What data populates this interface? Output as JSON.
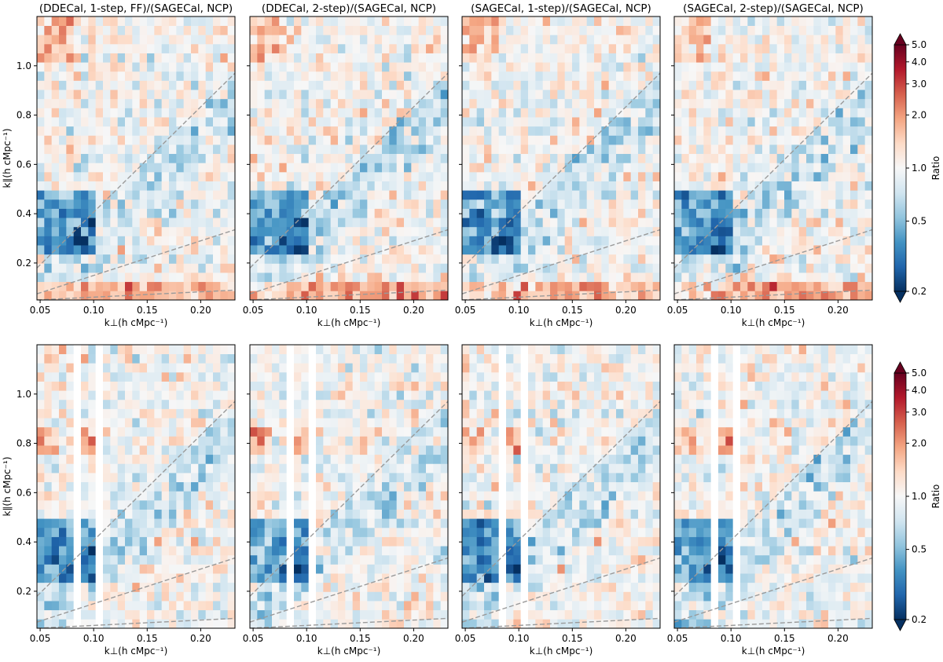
{
  "chart_data": {
    "type": "heatmap",
    "colormap": "RdBu_r (log-scaled ratio)",
    "xlabel": "k⊥(h cMpc⁻¹)",
    "ylabel": "k∥(h cMpc⁻¹)",
    "xlim": [
      0.047,
      0.232
    ],
    "ylim": [
      0.05,
      1.2
    ],
    "xticks": [
      "0.05",
      "0.10",
      "0.15",
      "0.20"
    ],
    "xtick_values": [
      0.05,
      0.1,
      0.15,
      0.2
    ],
    "yticks": [
      "0.2",
      "0.4",
      "0.6",
      "0.8",
      "1.0"
    ],
    "ytick_values": [
      0.2,
      0.4,
      0.6,
      0.8,
      1.0
    ],
    "grid_columns": 27,
    "grid_rows": 31,
    "color_range": [
      0.2,
      5.0
    ],
    "colorbar": {
      "label": "Ratio",
      "ticks": [
        "5.0",
        "4.0",
        "3.0",
        "2.0",
        "1.0",
        "0.5",
        "0.2"
      ],
      "tick_values": [
        5.0,
        4.0,
        3.0,
        2.0,
        1.0,
        0.5,
        0.2
      ]
    },
    "reference_lines": [
      {
        "name": "horizon line",
        "points": [
          [
            0.047,
            0.18
          ],
          [
            0.232,
            0.97
          ]
        ]
      },
      {
        "name": "middle wedge line",
        "points": [
          [
            0.047,
            0.075
          ],
          [
            0.232,
            0.335
          ]
        ]
      },
      {
        "name": "lower wedge line",
        "points": [
          [
            0.047,
            0.05
          ],
          [
            0.232,
            0.09
          ]
        ]
      }
    ],
    "blank_columns_bottom_row": [
      0.085,
      0.105
    ],
    "panels": [
      {
        "row": 0,
        "title": "(DDECal, 1-step, FF)/(SAGECal, NCP)"
      },
      {
        "row": 0,
        "title": "(DDECal, 2-step)/(SAGECal, NCP)"
      },
      {
        "row": 0,
        "title": "(SAGECal, 1-step)/(SAGECal, NCP)"
      },
      {
        "row": 0,
        "title": "(SAGECal, 2-step)/(SAGECal, NCP)"
      },
      {
        "row": 1,
        "title": ""
      },
      {
        "row": 1,
        "title": ""
      },
      {
        "row": 1,
        "title": ""
      },
      {
        "row": 1,
        "title": ""
      }
    ]
  }
}
